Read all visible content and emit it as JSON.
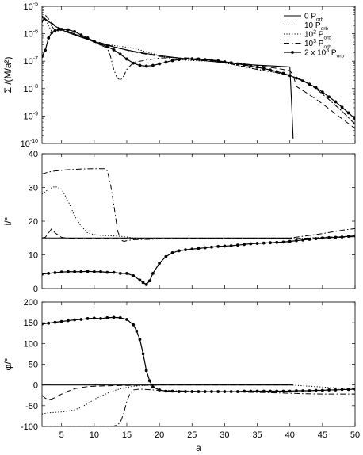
{
  "chart_data": [
    {
      "type": "line",
      "panel": "top",
      "ylabel": "Σ /(M/a²)",
      "yscale": "log",
      "ylim": [
        1e-10,
        1e-05
      ],
      "xlim": [
        2,
        50
      ],
      "yticks": [
        {
          "value": 1e-05,
          "mant": "10",
          "exp": "-5"
        },
        {
          "value": 1e-06,
          "mant": "10",
          "exp": "-6"
        },
        {
          "value": 1e-07,
          "mant": "10",
          "exp": "-7"
        },
        {
          "value": 1e-08,
          "mant": "10",
          "exp": "-8"
        },
        {
          "value": 1e-09,
          "mant": "10",
          "exp": "-9"
        },
        {
          "value": 1e-10,
          "mant": "10",
          "exp": "-10"
        }
      ],
      "legend": {
        "placement": "top-right",
        "entries": [
          {
            "pre": "0 P",
            "sup": "",
            "sub": "orb"
          },
          {
            "pre": "10 P",
            "sup": "",
            "sub": "orb"
          },
          {
            "pre": "10",
            "sup": "2",
            "mid": " P",
            "sub": "orb"
          },
          {
            "pre": "10",
            "sup": "3",
            "mid": " P",
            "sub": "orb"
          },
          {
            "pre": "2 x 10",
            "sup": "3",
            "mid": " P",
            "sub": "orb"
          }
        ]
      },
      "series": [
        {
          "style": "solid",
          "x": [
            2,
            3,
            4,
            5,
            6,
            8,
            10,
            12,
            14,
            16,
            18,
            20,
            22,
            25,
            28,
            30,
            32,
            35,
            38,
            40,
            40.3,
            40.5
          ],
          "y": [
            4.5e-06,
            2.8e-06,
            1.9e-06,
            1.4e-06,
            1.1e-06,
            7.5e-07,
            5.2e-07,
            3.8e-07,
            2.9e-07,
            2.3e-07,
            1.9e-07,
            1.6e-07,
            1.4e-07,
            1.15e-07,
            9.8e-08,
            8.8e-08,
            8e-08,
            7.2e-08,
            6.6e-08,
            6.2e-08,
            2e-09,
            1.5e-10
          ]
        },
        {
          "style": "dash",
          "x": [
            2,
            2.5,
            3,
            3.5,
            4,
            5,
            6,
            8,
            10,
            12,
            14,
            16,
            18,
            20,
            22,
            25,
            28,
            30,
            32,
            35,
            38,
            40,
            40.5,
            41,
            43,
            45,
            47,
            50
          ],
          "y": [
            2.5e-06,
            4.8e-06,
            3.5e-06,
            2.5e-06,
            2e-06,
            1.5e-06,
            1.2e-06,
            8e-07,
            5.5e-07,
            4e-07,
            2.9e-07,
            2.2e-07,
            1.8e-07,
            1.5e-07,
            1.35e-07,
            1.2e-07,
            1.05e-07,
            9.5e-08,
            8.5e-08,
            7e-08,
            5.5e-08,
            4.5e-08,
            3.2e-08,
            1.2e-08,
            6e-09,
            2.8e-09,
            1.2e-09,
            3.5e-10
          ]
        },
        {
          "style": "dot",
          "x": [
            2,
            2.5,
            3,
            3.5,
            4,
            4.5,
            5,
            6,
            8,
            10,
            12,
            14,
            16,
            18,
            20,
            22,
            25,
            28,
            30,
            32,
            35,
            38,
            40,
            42,
            44,
            46,
            48,
            50
          ],
          "y": [
            3e-06,
            3.5e-06,
            2e-06,
            1.2e-06,
            1.1e-06,
            1.3e-06,
            1.3e-06,
            1.15e-06,
            8e-07,
            5e-07,
            4e-07,
            3.5e-07,
            3e-07,
            2.2e-07,
            1.6e-07,
            1.2e-07,
            1.05e-07,
            1e-07,
            8.5e-08,
            7e-08,
            5e-08,
            3.8e-08,
            3e-08,
            2e-08,
            1e-08,
            4e-09,
            1.5e-09,
            5e-10
          ]
        },
        {
          "style": "dashdot",
          "x": [
            2,
            2.5,
            3,
            3.5,
            4,
            5,
            6,
            8,
            10,
            12,
            12.5,
            13,
            13.5,
            14,
            14.5,
            15,
            16,
            17,
            18,
            20,
            22,
            25,
            28,
            30,
            32,
            35,
            38,
            40,
            42,
            44,
            46,
            48,
            50
          ],
          "y": [
            4e-06,
            3.2e-06,
            2.8e-06,
            1.9e-06,
            1.3e-06,
            1.4e-06,
            1.2e-06,
            8e-07,
            5e-07,
            3e-07,
            1.5e-07,
            5e-08,
            2.5e-08,
            2e-08,
            2.8e-08,
            5e-08,
            9e-08,
            1e-07,
            1.1e-07,
            1.3e-07,
            1.35e-07,
            1.3e-07,
            1.1e-07,
            9e-08,
            7e-08,
            5e-08,
            3.8e-08,
            3e-08,
            2e-08,
            1e-08,
            4e-09,
            1.5e-09,
            5e-10
          ]
        },
        {
          "style": "marker",
          "x": [
            2,
            2.5,
            3,
            3.5,
            4,
            4.5,
            5,
            6,
            7,
            8,
            9,
            10,
            11,
            12,
            13,
            14,
            15,
            16,
            17,
            18,
            19,
            20,
            21,
            22,
            23,
            24,
            25,
            26,
            27,
            28,
            29,
            30,
            31,
            32,
            33,
            34,
            35,
            36,
            37,
            38,
            39,
            40,
            41,
            42,
            43,
            44,
            45,
            46,
            47,
            48,
            49,
            50
          ],
          "y": [
            1.5e-07,
            2.5e-07,
            7e-07,
            1.1e-06,
            1.3e-06,
            1.4e-06,
            1.45e-06,
            1.4e-06,
            1.2e-06,
            9e-07,
            7e-07,
            5.3e-07,
            4.2e-07,
            3.4e-07,
            2.6e-07,
            1.8e-07,
            1.2e-07,
            8.5e-08,
            7e-08,
            6.6e-08,
            7e-08,
            8e-08,
            9.2e-08,
            1.05e-07,
            1.15e-07,
            1.2e-07,
            1.22e-07,
            1.2e-07,
            1.15e-07,
            1.1e-07,
            1.03e-07,
            9.5e-08,
            8.8e-08,
            8e-08,
            7.3e-08,
            6.6e-08,
            6e-08,
            5.4e-08,
            4.8e-08,
            4.2e-08,
            3.6e-08,
            3e-08,
            2.4e-08,
            1.9e-08,
            1.45e-08,
            1.1e-08,
            7.5e-09,
            5e-09,
            3.3e-09,
            2.1e-09,
            1.3e-09,
            8e-10
          ]
        }
      ]
    },
    {
      "type": "line",
      "panel": "middle",
      "ylabel": "i/°",
      "ylim": [
        0,
        40
      ],
      "xlim": [
        2,
        50
      ],
      "yticks": [
        0,
        10,
        20,
        30,
        40
      ],
      "series": [
        {
          "style": "solid",
          "x": [
            2,
            40.3
          ],
          "y": [
            15,
            15
          ]
        },
        {
          "style": "dash",
          "x": [
            2,
            2.5,
            3,
            3.5,
            4,
            5,
            6,
            8,
            10,
            12,
            15,
            20,
            25,
            30,
            35,
            40,
            42,
            45,
            48,
            50
          ],
          "y": [
            15,
            15.2,
            16.5,
            17.8,
            16.5,
            15.2,
            14.9,
            14.8,
            14.8,
            14.8,
            14.8,
            14.8,
            14.8,
            14.8,
            14.8,
            14.8,
            14.9,
            15.1,
            15.2,
            15.4
          ]
        },
        {
          "style": "dot",
          "x": [
            2,
            3,
            4,
            5,
            6,
            7,
            8,
            9,
            10,
            11,
            12,
            13,
            14,
            15,
            16,
            17,
            18,
            20,
            25,
            30,
            35,
            40,
            42,
            45,
            48,
            50
          ],
          "y": [
            28,
            29.5,
            30.3,
            29.5,
            26,
            21.5,
            18.5,
            16.5,
            16,
            15.8,
            15.7,
            15.6,
            15.5,
            15.3,
            15,
            14.9,
            14.8,
            14.8,
            14.8,
            14.8,
            14.8,
            14.8,
            14.9,
            15.2,
            15.4,
            15.6
          ]
        },
        {
          "style": "dashdot",
          "x": [
            2,
            3,
            4,
            5,
            6,
            8,
            10,
            11.5,
            12,
            12.5,
            13,
            13.3,
            13.6,
            14,
            14.3,
            14.6,
            15,
            16,
            18,
            20,
            25,
            30,
            35,
            38,
            40,
            42,
            45,
            48,
            50
          ],
          "y": [
            34,
            34.6,
            34.9,
            35.1,
            35.3,
            35.5,
            35.6,
            35.6,
            35,
            31,
            25,
            21,
            17,
            15,
            14.2,
            14,
            14.2,
            14.5,
            14.6,
            14.7,
            14.8,
            14.8,
            14.8,
            14.8,
            15,
            15.5,
            16.3,
            17.3,
            17.8
          ]
        },
        {
          "style": "marker",
          "x": [
            2,
            3,
            4,
            5,
            6,
            7,
            8,
            9,
            10,
            11,
            12,
            13,
            14,
            15,
            16,
            17,
            17.5,
            18,
            18.5,
            19,
            20,
            21,
            22,
            23,
            24,
            25,
            26,
            27,
            28,
            29,
            30,
            31,
            32,
            33,
            34,
            35,
            36,
            37,
            38,
            39,
            40,
            41,
            42,
            43,
            44,
            45,
            46,
            47,
            48,
            49,
            50
          ],
          "y": [
            4.3,
            4.5,
            4.7,
            4.9,
            5,
            5,
            5,
            5.1,
            5,
            5,
            4.8,
            4.8,
            4.5,
            4.5,
            3.8,
            2.5,
            1.8,
            1.2,
            2.3,
            4.5,
            7.5,
            9.5,
            10.6,
            11.2,
            11.5,
            11.7,
            11.9,
            12.1,
            12.3,
            12.5,
            12.6,
            12.7,
            12.9,
            13.1,
            13.3,
            13.4,
            13.5,
            13.6,
            13.7,
            13.8,
            14,
            14.2,
            14.4,
            14.6,
            14.8,
            15,
            15.1,
            15.2,
            15.3,
            15.5,
            15.6
          ]
        }
      ]
    },
    {
      "type": "line",
      "panel": "bottom",
      "ylabel": "φ/°",
      "xlabel": "a",
      "ylim": [
        -100,
        200
      ],
      "xlim": [
        2,
        50
      ],
      "yticks": [
        -100,
        -50,
        0,
        50,
        100,
        150,
        200
      ],
      "xticks": [
        5,
        10,
        15,
        20,
        25,
        30,
        35,
        40,
        45,
        50
      ],
      "series": [
        {
          "style": "solid",
          "x": [
            2,
            40.3
          ],
          "y": [
            0,
            0
          ]
        },
        {
          "style": "dash",
          "x": [
            2,
            2.5,
            3,
            3.5,
            4,
            5,
            6,
            7,
            8,
            9,
            10,
            12,
            15,
            20,
            25,
            30,
            35,
            40,
            40.5
          ],
          "y": [
            -25,
            -32,
            -35,
            -34,
            -30,
            -22,
            -15,
            -9,
            -6,
            -4,
            -3,
            -2,
            -1,
            0,
            0,
            0,
            0,
            0,
            0
          ]
        },
        {
          "style": "dot",
          "x": [
            2,
            3,
            4,
            5,
            6,
            7,
            8,
            9,
            10,
            11,
            12,
            13,
            14,
            15,
            16,
            17,
            18,
            20,
            25,
            30,
            35,
            40,
            41,
            42,
            45,
            48,
            50
          ],
          "y": [
            -70,
            -67,
            -66,
            -65,
            -63,
            -60,
            -54,
            -45,
            -35,
            -27,
            -20,
            -14,
            -9,
            -6,
            -3,
            -2,
            -1,
            0,
            0,
            0,
            0,
            0,
            -1,
            -2,
            -5,
            -8,
            -8
          ]
        },
        {
          "style": "dashdot",
          "x": [
            2,
            4,
            6,
            8,
            10,
            12,
            13,
            13.5,
            14,
            14.5,
            15,
            15.5,
            16,
            17,
            18,
            20,
            22,
            25,
            28,
            30,
            32,
            35,
            38,
            40,
            42,
            45,
            48,
            50
          ],
          "y": [
            -100,
            -100,
            -100,
            -100,
            -100,
            -100,
            -99,
            -97,
            -90,
            -70,
            -40,
            -20,
            -12,
            -10,
            -11,
            -13,
            -14,
            -15,
            -16,
            -17,
            -17,
            -18,
            -19,
            -20,
            -21,
            -22,
            -22,
            -22
          ]
        },
        {
          "style": "marker",
          "x": [
            2,
            3,
            4,
            5,
            6,
            7,
            8,
            9,
            10,
            11,
            12,
            13,
            14,
            15,
            16,
            16.5,
            17,
            17.5,
            18,
            18.5,
            19,
            20,
            21,
            22,
            23,
            24,
            25,
            26,
            27,
            28,
            29,
            30,
            31,
            32,
            33,
            34,
            35,
            36,
            37,
            38,
            39,
            40,
            41,
            42,
            43,
            44,
            45,
            46,
            47,
            48,
            49,
            50
          ],
          "y": [
            147,
            149,
            151,
            153,
            155,
            157,
            158,
            160,
            161,
            160,
            162,
            163,
            162,
            158,
            145,
            130,
            110,
            75,
            35,
            10,
            -5,
            -12,
            -15,
            -15,
            -16,
            -16,
            -16,
            -16,
            -16,
            -16,
            -16,
            -16,
            -16,
            -16,
            -15,
            -15,
            -15,
            -15,
            -15,
            -15,
            -15,
            -15,
            -14,
            -14,
            -14,
            -13,
            -13,
            -12,
            -12,
            -11,
            -11,
            -10
          ]
        }
      ]
    }
  ]
}
